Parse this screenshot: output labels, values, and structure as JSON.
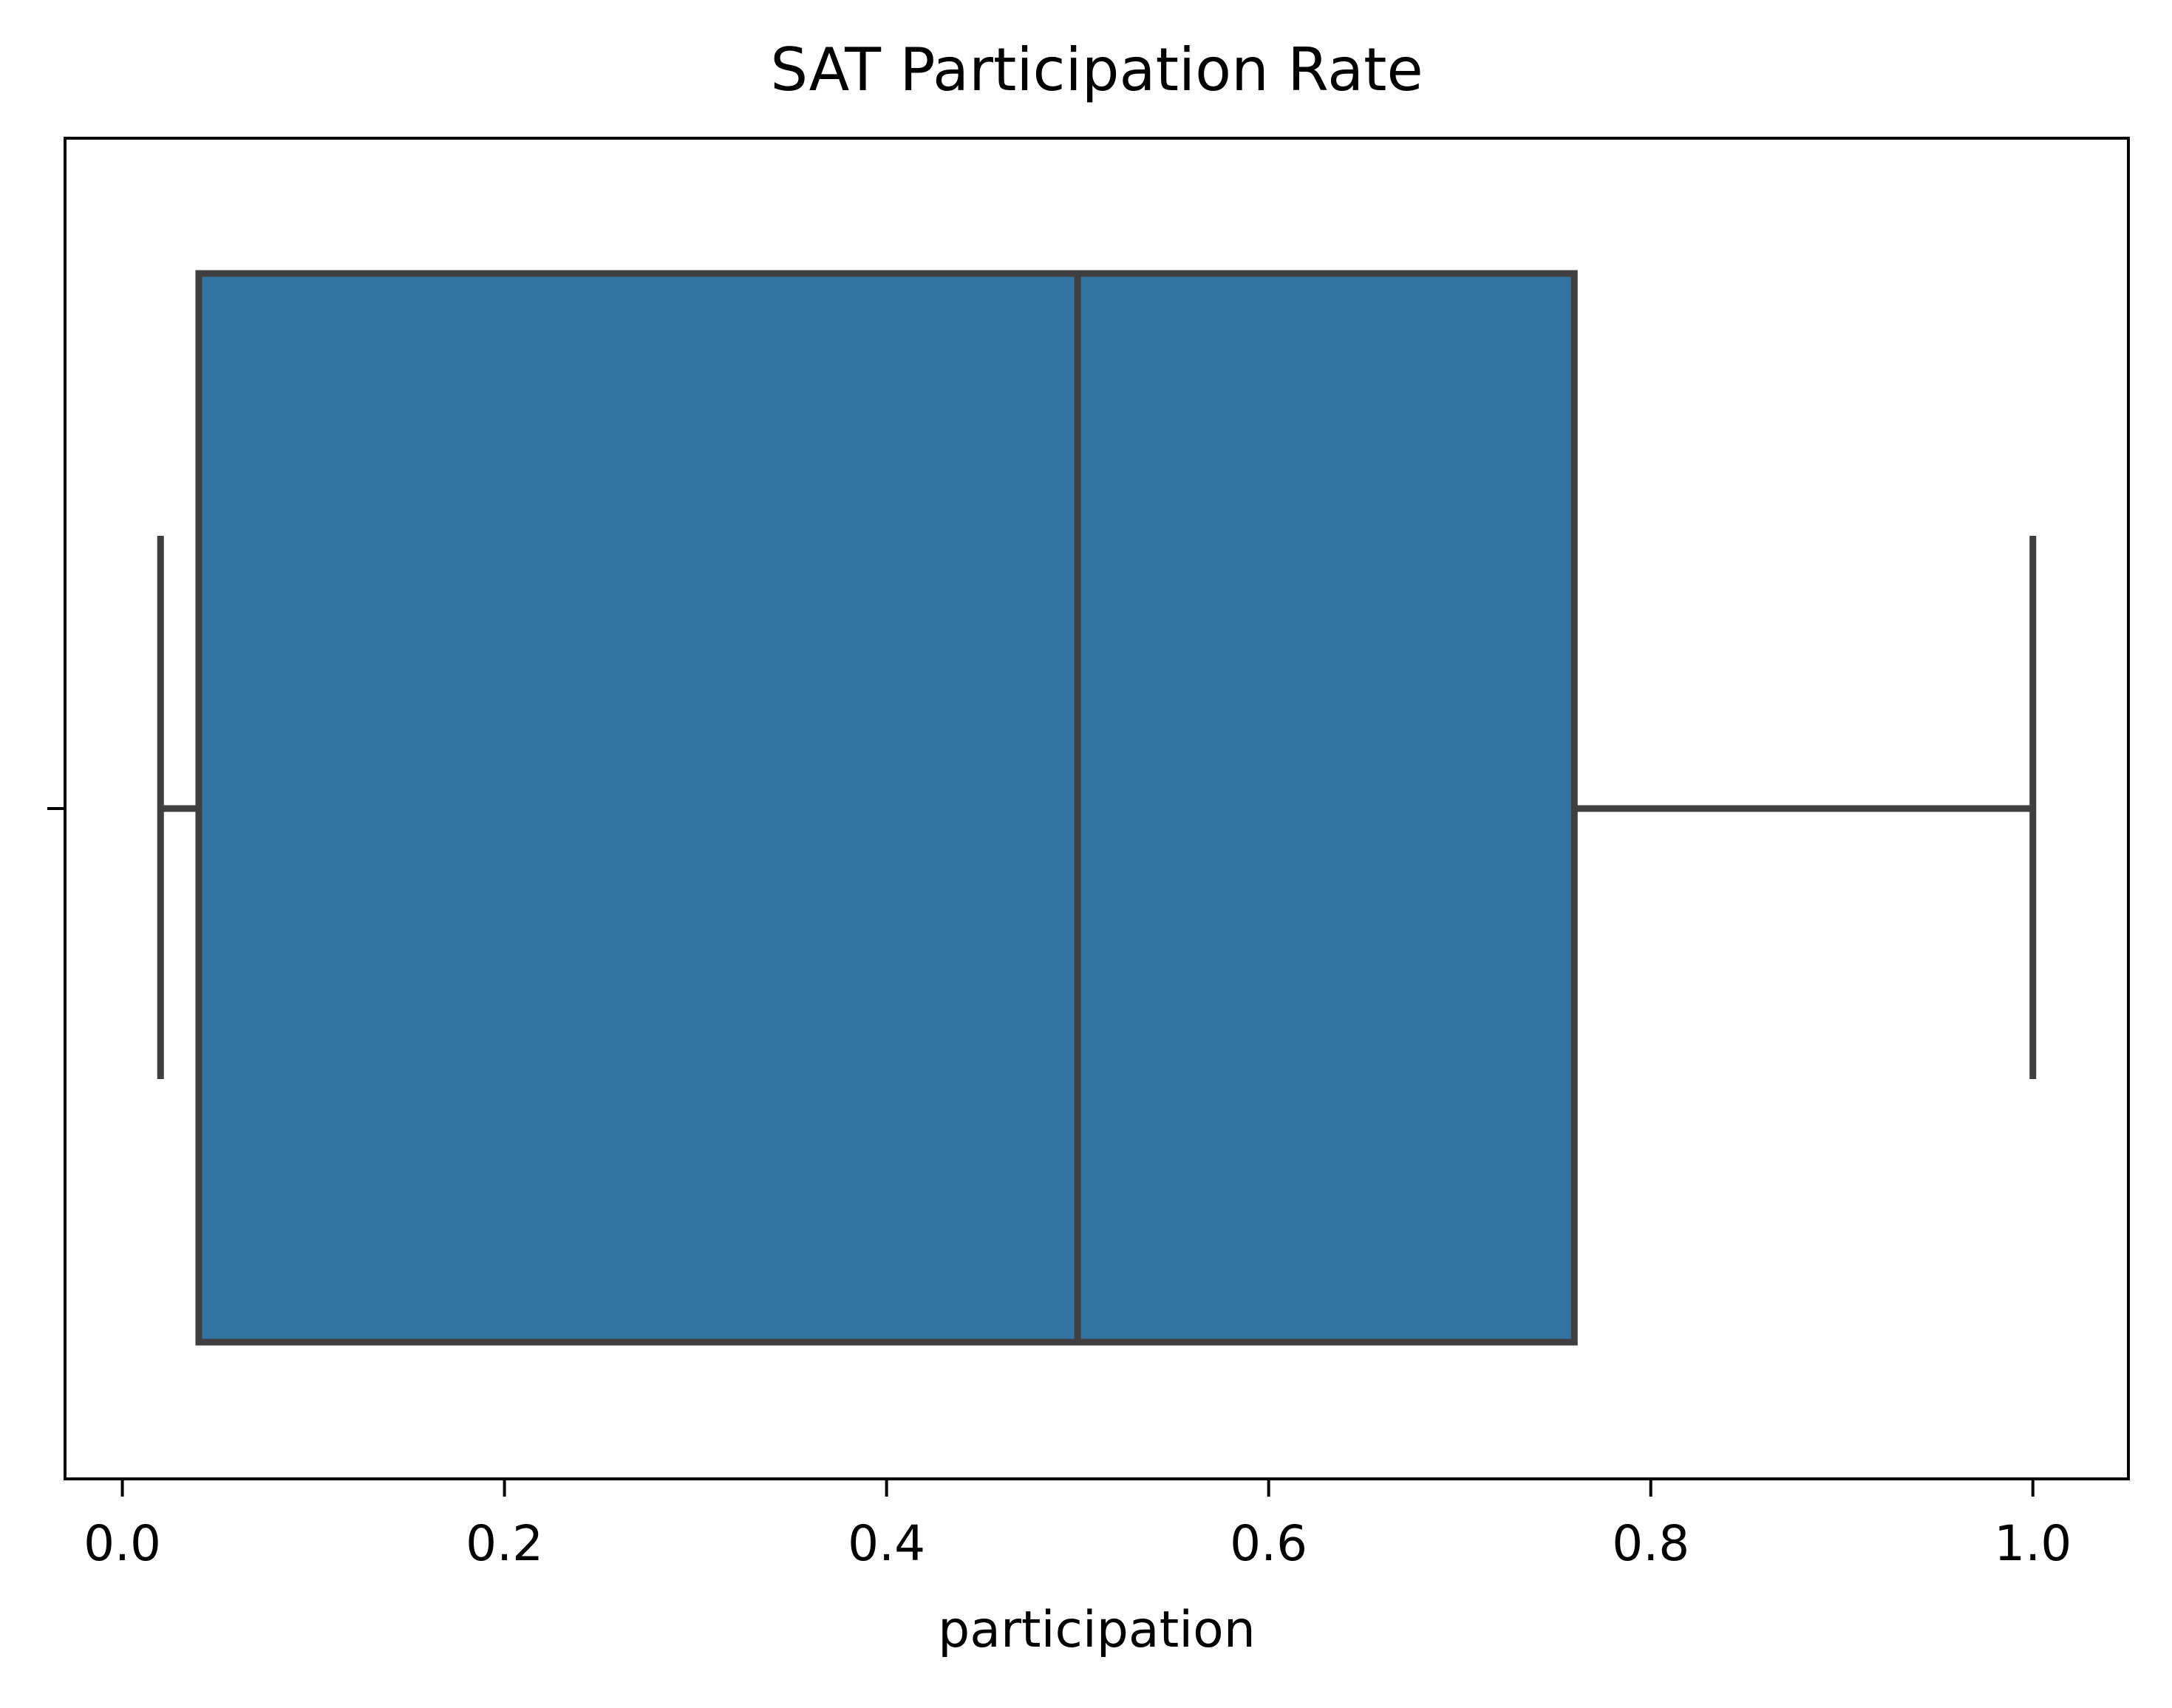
{
  "chart_data": {
    "type": "boxplot",
    "orientation": "horizontal",
    "title": "SAT Participation Rate",
    "xlabel": "participation",
    "ylabel": "",
    "xlim": [
      -0.03,
      1.05
    ],
    "x_ticks": [
      0.0,
      0.2,
      0.4,
      0.6,
      0.8,
      1.0
    ],
    "x_tick_labels": [
      "0.0",
      "0.2",
      "0.4",
      "0.6",
      "0.8",
      "1.0"
    ],
    "grid": false,
    "series": [
      {
        "whisker_low": 0.02,
        "q1": 0.04,
        "median": 0.5,
        "q3": 0.76,
        "whisker_high": 1.0
      }
    ],
    "colors": {
      "box_fill": "#3274a1",
      "box_edge": "#3f3f3f",
      "axes": "#000000"
    }
  }
}
